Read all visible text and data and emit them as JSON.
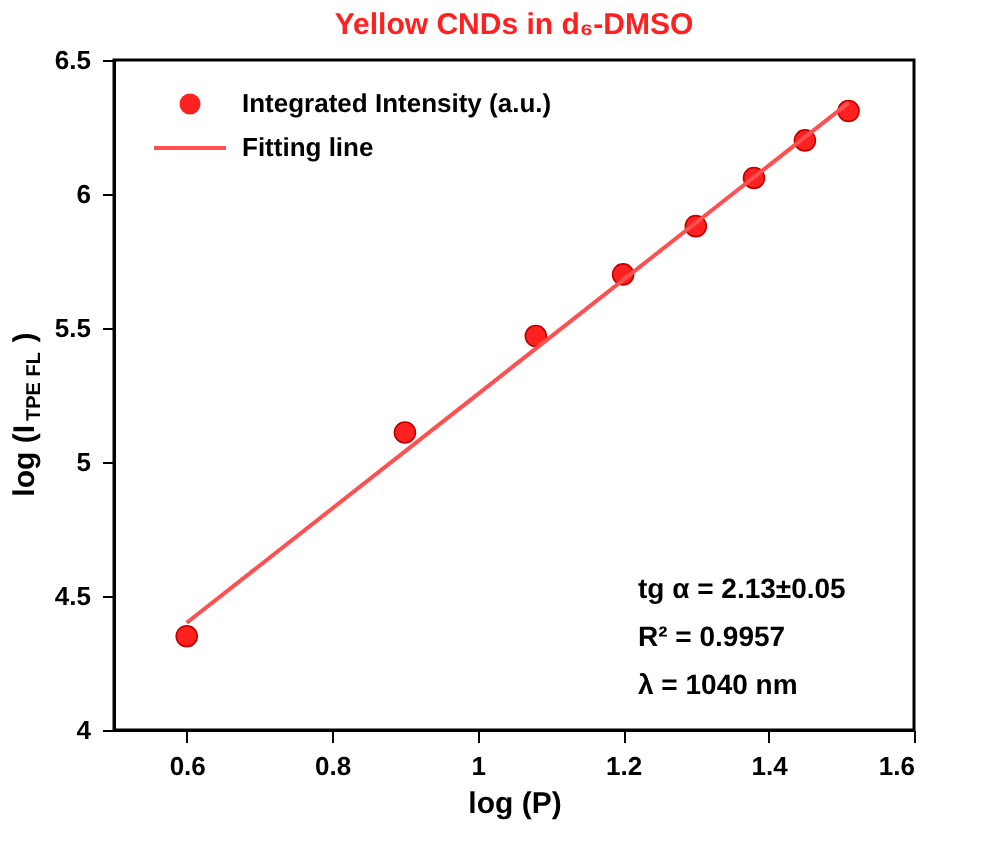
{
  "chart_data": {
    "type": "scatter",
    "title": "Yellow CNDs in d₆-DMSO",
    "xlabel": "log (P)",
    "ylabel": "log (I$_{TPE FL}$)",
    "series": [
      {
        "name": "Integrated Intensity (a.u.)",
        "type": "scatter",
        "color": "#ff2020",
        "marker": "circle",
        "x": [
          0.6,
          0.9,
          1.08,
          1.2,
          1.3,
          1.38,
          1.45,
          1.51
        ],
        "values": [
          4.35,
          5.11,
          5.47,
          5.7,
          5.88,
          6.06,
          6.2,
          6.31
        ]
      },
      {
        "name": "Fitting line",
        "type": "line",
        "color": "#ff5050",
        "line_style": "solid",
        "x": [
          0.6,
          1.51
        ],
        "values": [
          4.4,
          6.34
        ]
      }
    ],
    "xlim": [
      0.5,
      1.6
    ],
    "xticks": [
      0.6,
      0.8,
      1,
      1.2,
      1.4,
      1.6
    ],
    "ylim": [
      4,
      6.5
    ],
    "yticks": [
      4,
      4.5,
      5,
      5.5,
      6,
      6.5
    ],
    "grid": false,
    "legend": "top left",
    "annotations": [
      "tg α = 2.13±0.05",
      "R² = 0.9957",
      "λ = 1040 nm"
    ]
  }
}
